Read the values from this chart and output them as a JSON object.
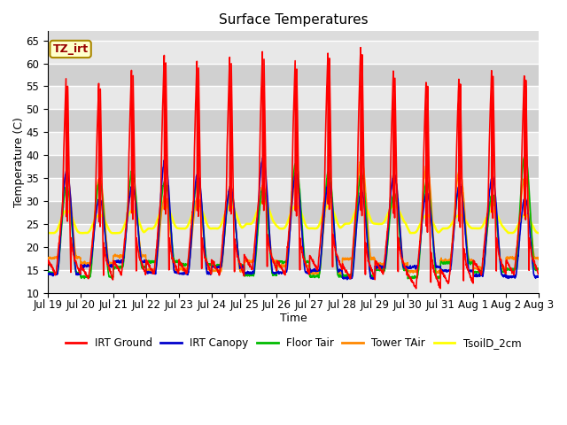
{
  "title": "Surface Temperatures",
  "xlabel": "Time",
  "ylabel": "Temperature (C)",
  "ylim": [
    10,
    67
  ],
  "yticks": [
    10,
    15,
    20,
    25,
    30,
    35,
    40,
    45,
    50,
    55,
    60,
    65
  ],
  "plot_bg_color": "#dcdcdc",
  "series": {
    "IRT Ground": {
      "color": "#ff0000",
      "lw": 1.2
    },
    "IRT Canopy": {
      "color": "#0000cc",
      "lw": 1.2
    },
    "Floor Tair": {
      "color": "#00bb00",
      "lw": 1.2
    },
    "Tower TAir": {
      "color": "#ff8800",
      "lw": 1.2
    },
    "TsoilD_2cm": {
      "color": "#ffff00",
      "lw": 1.8
    }
  },
  "annotation_text": "TZ_irt",
  "annotation_color": "#990000",
  "annotation_bg": "#ffffcc",
  "annotation_border": "#aa8800",
  "x_tick_labels": [
    "Jul 19",
    "Jul 20",
    "Jul 21",
    "Jul 22",
    "Jul 23",
    "Jul 24",
    "Jul 25",
    "Jul 26",
    "Jul 27",
    "Jul 28",
    "Jul 29",
    "Jul 30",
    "Jul 31",
    "Aug 1",
    "Aug 2",
    "Aug 3"
  ],
  "n_days": 15,
  "pts_per_day": 144
}
